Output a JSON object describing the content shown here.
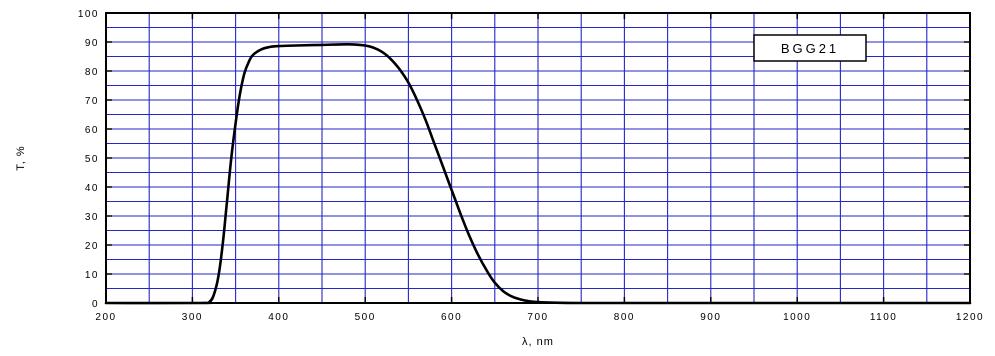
{
  "chart_data": {
    "type": "line",
    "title": "",
    "xlabel": "λ, nm",
    "ylabel": "T, %",
    "xlim": [
      200,
      1200
    ],
    "ylim": [
      0,
      100
    ],
    "xticks": [
      200,
      300,
      400,
      500,
      600,
      700,
      800,
      900,
      1000,
      1100,
      1200
    ],
    "yticks": [
      0,
      10,
      20,
      30,
      40,
      50,
      60,
      70,
      80,
      90,
      100
    ],
    "xtick_labels": [
      "200",
      "300",
      "400",
      "500",
      "600",
      "700",
      "800",
      "900",
      "1000",
      "1100",
      "1200"
    ],
    "ytick_labels": [
      "0",
      "10",
      "20",
      "30",
      "40",
      "50",
      "60",
      "70",
      "80",
      "90",
      "100"
    ],
    "x_grid_step": 50,
    "y_grid_step": 5,
    "grid": true,
    "legend": {
      "text": "BGG21",
      "placement": "top-right"
    },
    "colors": {
      "grid": "#2626c8",
      "line": "#000000",
      "frame": "#000000"
    },
    "series": [
      {
        "name": "BGG21",
        "x": [
          200,
          310,
          320,
          325,
          330,
          335,
          340,
          345,
          350,
          355,
          360,
          365,
          370,
          380,
          390,
          400,
          420,
          450,
          480,
          500,
          510,
          520,
          530,
          540,
          550,
          560,
          570,
          580,
          590,
          600,
          610,
          620,
          630,
          640,
          650,
          660,
          670,
          680,
          690,
          700,
          720,
          750,
          800,
          900,
          1000,
          1100,
          1200
        ],
        "y": [
          0,
          0,
          0.5,
          3,
          9,
          20,
          35,
          50,
          62,
          72,
          79,
          83,
          85.5,
          87.5,
          88.3,
          88.6,
          88.8,
          89,
          89.2,
          88.8,
          88,
          86.5,
          84,
          80.5,
          76,
          70,
          63,
          55,
          47,
          39,
          31,
          23.5,
          17,
          11.5,
          7,
          4,
          2.2,
          1.2,
          0.6,
          0.3,
          0.1,
          0,
          0,
          0,
          0,
          0,
          0
        ]
      }
    ]
  }
}
